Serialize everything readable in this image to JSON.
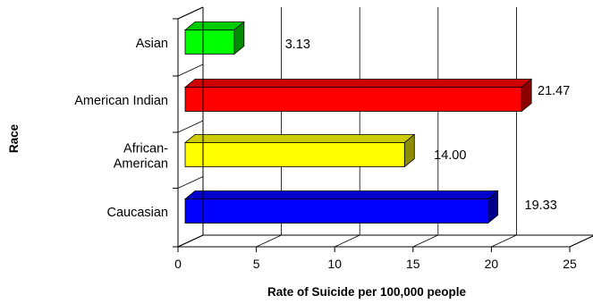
{
  "chart_data": {
    "type": "bar",
    "orientation": "horizontal",
    "style": "3d",
    "title": "",
    "xlabel": "Rate of Suicide per 100,000 people",
    "ylabel": "Race",
    "xlim": [
      0,
      25
    ],
    "x_ticks": [
      "0",
      "5",
      "10",
      "15",
      "20",
      "25"
    ],
    "grid": true,
    "legend": "none",
    "categories": [
      [
        "Asian"
      ],
      [
        "American Indian"
      ],
      [
        "African-",
        "American"
      ],
      [
        "Caucasian"
      ]
    ],
    "values": [
      3.13,
      21.47,
      14.0,
      19.33
    ],
    "value_labels": [
      "3.13",
      "21.47",
      "14.00",
      "19.33"
    ],
    "colors": [
      "#00ff00",
      "#ff0000",
      "#ffff00",
      "#0000ff"
    ]
  }
}
